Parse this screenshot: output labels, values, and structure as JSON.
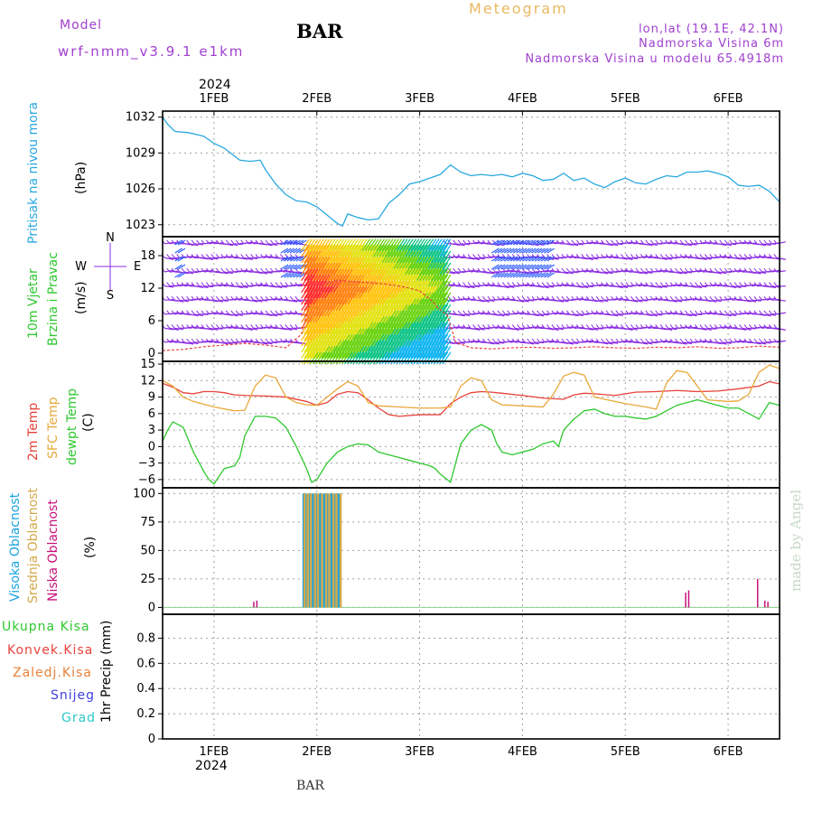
{
  "header": {
    "model_label": "Model",
    "model_name": "wrf-nmm_v3.9.1 e1km",
    "station": "BAR",
    "title": "Meteogram",
    "lonlat": "lon,lat (19.1E, 42.1N)",
    "elevation": "Nadmorska Visina 6m",
    "model_elevation": "Nadmorska Visina u modelu 65.4918m",
    "year_top": "2024",
    "year_bottom": "2024",
    "footer_station": "BAR",
    "credit": "made by Angel"
  },
  "colors": {
    "pressure": "#29a8e0",
    "temp2m": "#e8423a",
    "sfc": "#e8a83a",
    "dewpt": "#2ec82e",
    "wind_purple": "#8a2be2",
    "high_cloud": "#1aa4e0",
    "mid_cloud": "#d4a84a",
    "low_cloud": "#c8107a",
    "grad": "#2ec8c8",
    "snow": "#4040e0"
  },
  "chart_data": [
    {
      "type": "line",
      "panel": "pressure",
      "labels": [
        "Pritisak na nivou mora",
        "(hPa)"
      ],
      "ylim": [
        1022,
        1032.5
      ],
      "yticks": [
        "1032",
        "1029",
        "1026",
        "1023"
      ],
      "xticks": [
        "1FEB",
        "2FEB",
        "3FEB",
        "4FEB",
        "5FEB",
        "6FEB"
      ],
      "xlim_days": [
        0.5,
        6.5
      ],
      "grid": true,
      "series": [
        {
          "x": [
            0.5,
            0.55,
            0.62,
            0.75,
            0.9,
            1.0,
            1.1,
            1.25,
            1.35,
            1.45,
            1.5,
            1.6,
            1.7,
            1.8,
            1.9,
            2.0,
            2.1,
            2.2,
            2.25,
            2.3,
            2.4,
            2.5,
            2.6,
            2.7,
            2.8,
            2.9,
            3.0,
            3.1,
            3.2,
            3.3,
            3.4,
            3.5,
            3.6,
            3.7,
            3.8,
            3.9,
            4.0,
            4.1,
            4.2,
            4.3,
            4.4,
            4.5,
            4.6,
            4.7,
            4.8,
            4.9,
            5.0,
            5.1,
            5.2,
            5.3,
            5.4,
            5.5,
            5.6,
            5.7,
            5.8,
            5.9,
            6.0,
            6.1,
            6.2,
            6.3,
            6.4,
            6.5
          ],
          "y": [
            1032,
            1031.4,
            1030.8,
            1030.7,
            1030.4,
            1029.8,
            1029.4,
            1028.4,
            1028.3,
            1028.4,
            1027.6,
            1026.4,
            1025.5,
            1025.0,
            1024.9,
            1024.5,
            1023.8,
            1023.1,
            1022.9,
            1023.9,
            1023.6,
            1023.4,
            1023.5,
            1024.8,
            1025.5,
            1026.4,
            1026.6,
            1026.9,
            1027.2,
            1028.0,
            1027.4,
            1027.1,
            1027.2,
            1027.1,
            1027.2,
            1027.0,
            1027.3,
            1027.1,
            1026.7,
            1026.8,
            1027.3,
            1026.7,
            1026.9,
            1026.4,
            1026.1,
            1026.6,
            1026.9,
            1026.5,
            1026.4,
            1026.8,
            1027.1,
            1027.0,
            1027.4,
            1027.4,
            1027.5,
            1027.3,
            1027.0,
            1026.3,
            1026.2,
            1026.3,
            1025.8,
            1024.9
          ]
        }
      ]
    },
    {
      "type": "line",
      "panel": "wind",
      "labels": [
        "10m Vjetar",
        "Brzina i Pravac",
        "(m/s)"
      ],
      "ylim": [
        -1.5,
        21.5
      ],
      "yticks": [
        "18",
        "12",
        "6",
        "0"
      ],
      "legend": {
        "n": "N",
        "s": "S",
        "w": "W",
        "e": "E"
      },
      "series": [
        {
          "name": "speed",
          "x": [
            0.5,
            0.7,
            0.9,
            1.1,
            1.3,
            1.5,
            1.7,
            1.85,
            1.95,
            2.05,
            2.2,
            2.35,
            2.5,
            2.65,
            2.8,
            2.9,
            3.0,
            3.1,
            3.2,
            3.27,
            3.35,
            3.5,
            3.7,
            3.9,
            4.1,
            4.3,
            4.5,
            4.7,
            4.9,
            5.1,
            5.3,
            5.5,
            5.7,
            5.9,
            6.1,
            6.3,
            6.5
          ],
          "y": [
            0.5,
            0.7,
            1.2,
            1.5,
            1.8,
            1.5,
            1.0,
            3.5,
            10.5,
            12.5,
            13.5,
            13.2,
            13.0,
            12.8,
            12.4,
            12.0,
            11.5,
            10.0,
            8.0,
            7.0,
            2.0,
            1.0,
            0.8,
            1.0,
            1.1,
            0.9,
            1.0,
            1.2,
            1.0,
            0.9,
            1.1,
            1.0,
            1.2,
            0.9,
            1.0,
            1.3,
            1.1
          ]
        }
      ]
    },
    {
      "type": "line",
      "panel": "temperature",
      "labels": [
        "2m Temp",
        "SFC Temp",
        "dewpt Temp",
        "(C)"
      ],
      "ylim": [
        -7.5,
        15.5
      ],
      "yticks": [
        "15",
        "12",
        "9",
        "6",
        "3",
        "0",
        "−3",
        "−6"
      ],
      "series": [
        {
          "name": "2m Temp",
          "x": [
            0.5,
            0.6,
            0.7,
            0.8,
            0.9,
            1.0,
            1.1,
            1.2,
            1.3,
            1.5,
            1.7,
            1.9,
            2.0,
            2.1,
            2.2,
            2.3,
            2.4,
            2.5,
            2.6,
            2.7,
            2.8,
            3.0,
            3.2,
            3.3,
            3.4,
            3.5,
            3.6,
            3.7,
            3.8,
            4.0,
            4.2,
            4.4,
            4.5,
            4.6,
            4.7,
            4.9,
            5.1,
            5.3,
            5.5,
            5.7,
            5.9,
            6.1,
            6.3,
            6.4,
            6.5
          ],
          "y": [
            11.5,
            10.8,
            9.8,
            9.6,
            10.0,
            10.0,
            9.8,
            9.4,
            9.3,
            9.2,
            9.0,
            8.2,
            7.5,
            8.0,
            9.5,
            10.0,
            9.8,
            8.5,
            7.0,
            5.8,
            5.5,
            5.8,
            5.8,
            7.8,
            9.0,
            9.8,
            10.0,
            9.9,
            9.7,
            9.3,
            8.8,
            8.6,
            9.4,
            9.7,
            9.6,
            9.3,
            9.9,
            10.0,
            10.2,
            10.0,
            10.1,
            10.5,
            11.0,
            11.8,
            11.4
          ]
        },
        {
          "name": "SFC Temp",
          "x": [
            0.5,
            0.6,
            0.7,
            0.8,
            1.0,
            1.2,
            1.3,
            1.4,
            1.5,
            1.6,
            1.7,
            1.8,
            1.9,
            2.0,
            2.2,
            2.3,
            2.4,
            2.5,
            2.6,
            2.8,
            3.0,
            3.2,
            3.3,
            3.4,
            3.5,
            3.6,
            3.7,
            3.8,
            4.0,
            4.2,
            4.3,
            4.4,
            4.5,
            4.6,
            4.7,
            5.0,
            5.2,
            5.3,
            5.4,
            5.5,
            5.6,
            5.7,
            5.8,
            6.0,
            6.1,
            6.2,
            6.3,
            6.4,
            6.5
          ],
          "y": [
            12.0,
            11.0,
            9.0,
            8.2,
            7.2,
            6.5,
            6.6,
            11.0,
            13.0,
            12.5,
            9.0,
            8.0,
            7.6,
            7.5,
            10.5,
            11.8,
            11.0,
            8.0,
            7.4,
            7.2,
            7.0,
            7.0,
            7.2,
            11.0,
            12.5,
            12.0,
            8.5,
            7.6,
            7.4,
            7.2,
            9.5,
            12.8,
            13.5,
            13.0,
            9.0,
            7.8,
            7.2,
            6.8,
            11.5,
            13.8,
            13.5,
            11.0,
            8.5,
            8.2,
            8.3,
            9.5,
            13.5,
            14.8,
            14.2
          ]
        },
        {
          "name": "dewpt Temp",
          "x": [
            0.5,
            0.55,
            0.6,
            0.7,
            0.8,
            0.9,
            0.95,
            1.0,
            1.1,
            1.2,
            1.25,
            1.3,
            1.4,
            1.5,
            1.6,
            1.7,
            1.8,
            1.9,
            1.95,
            2.0,
            2.1,
            2.2,
            2.3,
            2.4,
            2.5,
            2.6,
            2.7,
            2.8,
            2.9,
            3.0,
            3.1,
            3.15,
            3.2,
            3.3,
            3.4,
            3.5,
            3.6,
            3.7,
            3.75,
            3.8,
            3.9,
            4.0,
            4.1,
            4.2,
            4.3,
            4.35,
            4.4,
            4.5,
            4.6,
            4.7,
            4.8,
            4.9,
            5.0,
            5.1,
            5.2,
            5.3,
            5.4,
            5.5,
            5.6,
            5.7,
            5.8,
            5.9,
            6.0,
            6.1,
            6.2,
            6.3,
            6.4,
            6.5
          ],
          "y": [
            1.0,
            3.0,
            4.5,
            3.5,
            -1.0,
            -4.5,
            -6.0,
            -6.8,
            -4.0,
            -3.5,
            -2.0,
            2.0,
            5.5,
            5.5,
            5.2,
            3.5,
            0.0,
            -4.0,
            -6.5,
            -6.0,
            -3.0,
            -1.0,
            0.0,
            0.5,
            0.3,
            -1.0,
            -1.5,
            -2.0,
            -2.5,
            -3.0,
            -3.5,
            -4.0,
            -5.0,
            -6.5,
            0.5,
            3.0,
            4.0,
            3.0,
            0.5,
            -1.0,
            -1.5,
            -1.0,
            -0.5,
            0.5,
            1.0,
            0.0,
            3.0,
            5.0,
            6.5,
            6.8,
            6.0,
            5.5,
            5.5,
            5.2,
            5.0,
            5.5,
            6.5,
            7.5,
            8.0,
            8.5,
            8.0,
            7.5,
            7.0,
            7.0,
            6.0,
            5.0,
            8.0,
            7.5
          ]
        }
      ]
    },
    {
      "type": "bar",
      "panel": "cloud",
      "labels": [
        "Visoka Oblacnost",
        "Srednja Oblacnost",
        "Niska Oblacnost",
        "(%)"
      ],
      "ylim": [
        0,
        100
      ],
      "yticks": [
        "100",
        "75",
        "50",
        "25",
        "0"
      ],
      "series": [
        {
          "name": "Visoka Oblacnost",
          "x": [
            1.86,
            1.88,
            1.92,
            1.95,
            1.99,
            2.02,
            2.06,
            2.09,
            2.13,
            2.16,
            2.2
          ],
          "values": [
            100,
            100,
            100,
            100,
            100,
            100,
            100,
            100,
            100,
            100,
            100
          ]
        },
        {
          "name": "Srednja Oblacnost",
          "x": [
            1.87,
            1.9,
            1.93,
            1.97,
            2.0,
            2.04,
            2.08,
            2.11,
            2.15,
            2.18,
            2.22
          ],
          "values": [
            100,
            100,
            100,
            100,
            100,
            100,
            100,
            100,
            100,
            100,
            100
          ]
        },
        {
          "name": "Niska Oblacnost",
          "x": [
            1.38,
            1.41,
            5.58,
            5.61,
            6.28,
            6.35,
            6.38
          ],
          "values": [
            5,
            6,
            13,
            15,
            25,
            6,
            5
          ]
        }
      ]
    },
    {
      "type": "bar",
      "panel": "precip",
      "labels": [
        "Ukupna Kisa",
        "Konvek.Kisa",
        "Zaledj.Kisa",
        "Snijeg",
        "Grad",
        "1hr Precip (mm)"
      ],
      "ylim": [
        0,
        1.0
      ],
      "yticks": [
        "0.8",
        "0.6",
        "0.4",
        "0.2",
        "0"
      ],
      "series": []
    }
  ]
}
